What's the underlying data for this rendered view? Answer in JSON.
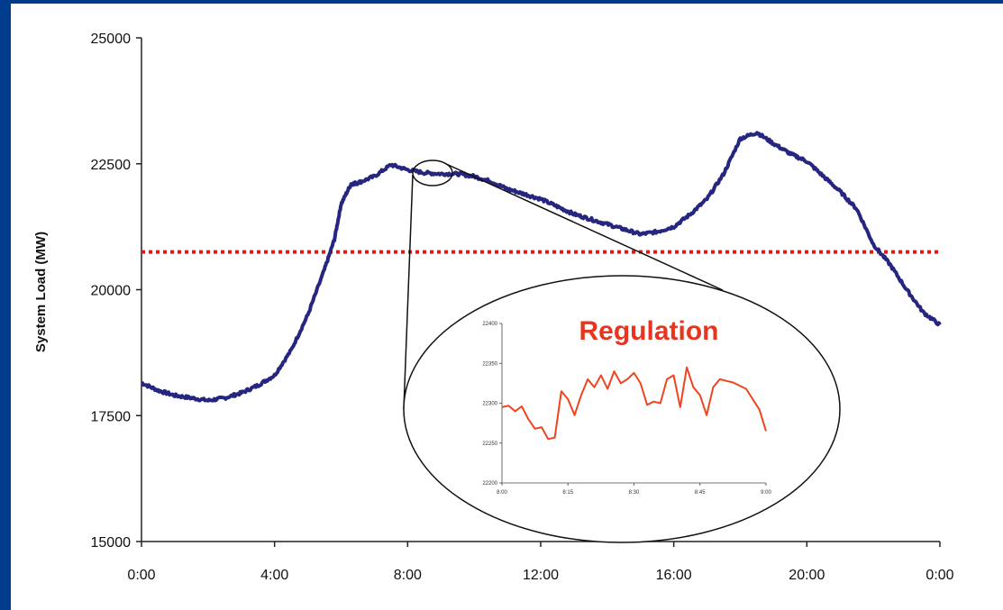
{
  "chart_data": [
    {
      "type": "line",
      "title": "",
      "xlabel": "",
      "ylabel": "System Load (MW)",
      "x_ticks": [
        "0:00",
        "4:00",
        "8:00",
        "12:00",
        "16:00",
        "20:00",
        "0:00"
      ],
      "xlim": [
        0,
        24
      ],
      "ylim": [
        15000,
        25000
      ],
      "y_ticks": [
        15000,
        17500,
        20000,
        22500,
        25000
      ],
      "y_tick_labels": [
        "15000",
        "17500",
        "20000",
        "22500",
        "25000"
      ],
      "grid": false,
      "legend": "none",
      "series": [
        {
          "color": "#262680",
          "x": [
            0,
            0.5,
            1,
            1.5,
            2,
            2.5,
            3,
            3.5,
            4,
            4.5,
            5,
            5.5,
            5.8,
            6,
            6.3,
            6.5,
            7,
            7.5,
            8,
            8.5,
            9,
            9.5,
            10,
            10.5,
            11,
            11.5,
            12,
            12.5,
            13,
            13.5,
            14,
            14.5,
            15,
            15.5,
            16,
            16.5,
            17,
            17.5,
            18,
            18.5,
            19,
            19.5,
            20,
            20.5,
            21,
            21.5,
            22,
            22.5,
            23,
            23.5,
            24
          ],
          "y": [
            18150,
            18000,
            17900,
            17850,
            17800,
            17850,
            17950,
            18100,
            18300,
            18800,
            19500,
            20400,
            21000,
            21700,
            22100,
            22120,
            22250,
            22480,
            22380,
            22320,
            22300,
            22300,
            22250,
            22150,
            22000,
            21900,
            21800,
            21650,
            21500,
            21400,
            21300,
            21200,
            21100,
            21150,
            21250,
            21500,
            21800,
            22300,
            23000,
            23120,
            22900,
            22700,
            22550,
            22250,
            21950,
            21600,
            20900,
            20500,
            20000,
            19550,
            19300
          ]
        }
      ],
      "reference_lines": [
        {
          "orientation": "horizontal",
          "y": 20750,
          "style": "dotted",
          "color": "#e01818"
        }
      ]
    },
    {
      "type": "line",
      "title": "Regulation",
      "x_ticks": [
        "8:00",
        "8:15",
        "8:30",
        "8:45",
        "9:00"
      ],
      "y_ticks": [
        "22200",
        "22250",
        "22300",
        "22350",
        "22400"
      ],
      "ylim": [
        22200,
        22400
      ],
      "series": [
        {
          "color": "#f0441e",
          "x": [
            0,
            0.025,
            0.05,
            0.075,
            0.1,
            0.125,
            0.15,
            0.175,
            0.2,
            0.225,
            0.25,
            0.275,
            0.3,
            0.325,
            0.35,
            0.375,
            0.4,
            0.425,
            0.45,
            0.475,
            0.5,
            0.525,
            0.55,
            0.575,
            0.6,
            0.625,
            0.65,
            0.675,
            0.7,
            0.725,
            0.75,
            0.775,
            0.8,
            0.825,
            0.85,
            0.875,
            0.9,
            0.925,
            0.95,
            0.975,
            1
          ],
          "y": [
            22295,
            22297,
            22290,
            22296,
            22280,
            22268,
            22270,
            22255,
            22257,
            22315,
            22305,
            22285,
            22310,
            22330,
            22320,
            22335,
            22318,
            22340,
            22325,
            22330,
            22338,
            22325,
            22298,
            22302,
            22300,
            22330,
            22335,
            22295,
            22345,
            22320,
            22310,
            22285,
            22320,
            22330,
            22328,
            22326,
            22322,
            22318,
            22305,
            22292,
            22265
          ]
        }
      ]
    }
  ]
}
